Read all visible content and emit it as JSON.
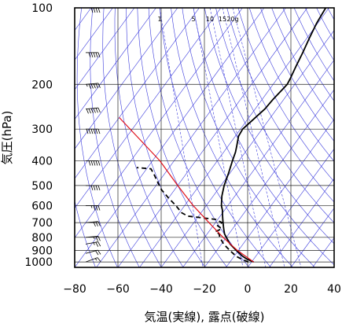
{
  "chart_data": {
    "type": "line",
    "chart_kind": "skew-T log-P diagram",
    "xlabel": "気温(実線), 露点(破線)",
    "ylabel": "気圧(hPa)",
    "x_ticks": [
      -80,
      -60,
      -40,
      -20,
      0,
      20,
      40
    ],
    "y_ticks": [
      100,
      200,
      300,
      400,
      500,
      600,
      700,
      800,
      900,
      1000
    ],
    "xlim": [
      -80,
      40
    ],
    "ylim": [
      1050,
      100
    ],
    "y_scale": "log",
    "grid": true,
    "mixing_ratio_labels": [
      "1",
      "5",
      "10",
      "15",
      "20g"
    ],
    "colors": {
      "background_lines": "#3b3bdc",
      "temperature": "#000000",
      "dewpoint": "#000000",
      "parcel": "#e0101a"
    },
    "series": [
      {
        "style": "solid",
        "points": [
          {
            "p": 1000,
            "t": 1.0
          },
          {
            "p": 975,
            "t": -3.0
          },
          {
            "p": 950,
            "t": -6.0
          },
          {
            "p": 925,
            "t": -8.5
          },
          {
            "p": 900,
            "t": -11.0
          },
          {
            "p": 875,
            "t": -13.5
          },
          {
            "p": 850,
            "t": -16.0
          },
          {
            "p": 825,
            "t": -18.0
          },
          {
            "p": 800,
            "t": -20.0
          },
          {
            "p": 775,
            "t": -22.0
          },
          {
            "p": 750,
            "t": -23.5
          },
          {
            "p": 725,
            "t": -25.0
          },
          {
            "p": 700,
            "t": -26.5
          },
          {
            "p": 675,
            "t": -28.0
          },
          {
            "p": 650,
            "t": -29.5
          },
          {
            "p": 625,
            "t": -31.0
          },
          {
            "p": 600,
            "t": -33.0
          },
          {
            "p": 550,
            "t": -36.0
          },
          {
            "p": 500,
            "t": -38.5
          },
          {
            "p": 450,
            "t": -40.5
          },
          {
            "p": 400,
            "t": -43.0
          },
          {
            "p": 370,
            "t": -44.5
          },
          {
            "p": 350,
            "t": -46.0
          },
          {
            "p": 320,
            "t": -48.5
          },
          {
            "p": 300,
            "t": -49.0
          },
          {
            "p": 270,
            "t": -47.0
          },
          {
            "p": 250,
            "t": -45.5
          },
          {
            "p": 230,
            "t": -45.0
          },
          {
            "p": 210,
            "t": -44.0
          },
          {
            "p": 200,
            "t": -43.5
          },
          {
            "p": 190,
            "t": -44.0
          },
          {
            "p": 170,
            "t": -45.5
          },
          {
            "p": 150,
            "t": -47.0
          },
          {
            "p": 130,
            "t": -49.0
          },
          {
            "p": 115,
            "t": -50.5
          },
          {
            "p": 100,
            "t": -51.5
          }
        ]
      },
      {
        "style": "dashed",
        "points": [
          {
            "p": 1000,
            "t": -1.5
          },
          {
            "p": 975,
            "t": -5.5
          },
          {
            "p": 950,
            "t": -9.0
          },
          {
            "p": 925,
            "t": -11.5
          },
          {
            "p": 900,
            "t": -14.0
          },
          {
            "p": 850,
            "t": -19.0
          },
          {
            "p": 800,
            "t": -23.0
          },
          {
            "p": 775,
            "t": -24.5
          },
          {
            "p": 760,
            "t": -27.0
          },
          {
            "p": 740,
            "t": -25.0
          },
          {
            "p": 720,
            "t": -28.0
          },
          {
            "p": 700,
            "t": -27.0
          },
          {
            "p": 680,
            "t": -31.0
          },
          {
            "p": 660,
            "t": -45.0
          },
          {
            "p": 640,
            "t": -49.0
          },
          {
            "p": 600,
            "t": -54.0
          },
          {
            "p": 560,
            "t": -60.0
          },
          {
            "p": 520,
            "t": -66.0
          },
          {
            "p": 480,
            "t": -71.0
          },
          {
            "p": 450,
            "t": -75.0
          },
          {
            "p": 430,
            "t": -78.0
          },
          {
            "p": 425,
            "t": -85.0
          }
        ]
      },
      {
        "style": "solid",
        "points": [
          {
            "p": 1000,
            "t": 1.0
          },
          {
            "p": 900,
            "t": -10.5
          },
          {
            "p": 800,
            "t": -21.5
          },
          {
            "p": 700,
            "t": -33.0
          },
          {
            "p": 600,
            "t": -46.0
          },
          {
            "p": 500,
            "t": -60.0
          },
          {
            "p": 400,
            "t": -76.5
          },
          {
            "p": 270,
            "t": -110.0
          }
        ]
      }
    ],
    "wind_barbs": [
      {
        "p": 1000,
        "dir": 250,
        "spd": 15
      },
      {
        "p": 925,
        "dir": 255,
        "spd": 20
      },
      {
        "p": 850,
        "dir": 260,
        "spd": 25
      },
      {
        "p": 800,
        "dir": 265,
        "spd": 25
      },
      {
        "p": 700,
        "dir": 265,
        "spd": 30
      },
      {
        "p": 600,
        "dir": 270,
        "spd": 35
      },
      {
        "p": 500,
        "dir": 270,
        "spd": 40
      },
      {
        "p": 400,
        "dir": 270,
        "spd": 50
      },
      {
        "p": 300,
        "dir": 270,
        "spd": 60
      },
      {
        "p": 250,
        "dir": 265,
        "spd": 60
      },
      {
        "p": 200,
        "dir": 265,
        "spd": 55
      },
      {
        "p": 150,
        "dir": 270,
        "spd": 50
      },
      {
        "p": 100,
        "dir": 270,
        "spd": 40
      }
    ]
  }
}
